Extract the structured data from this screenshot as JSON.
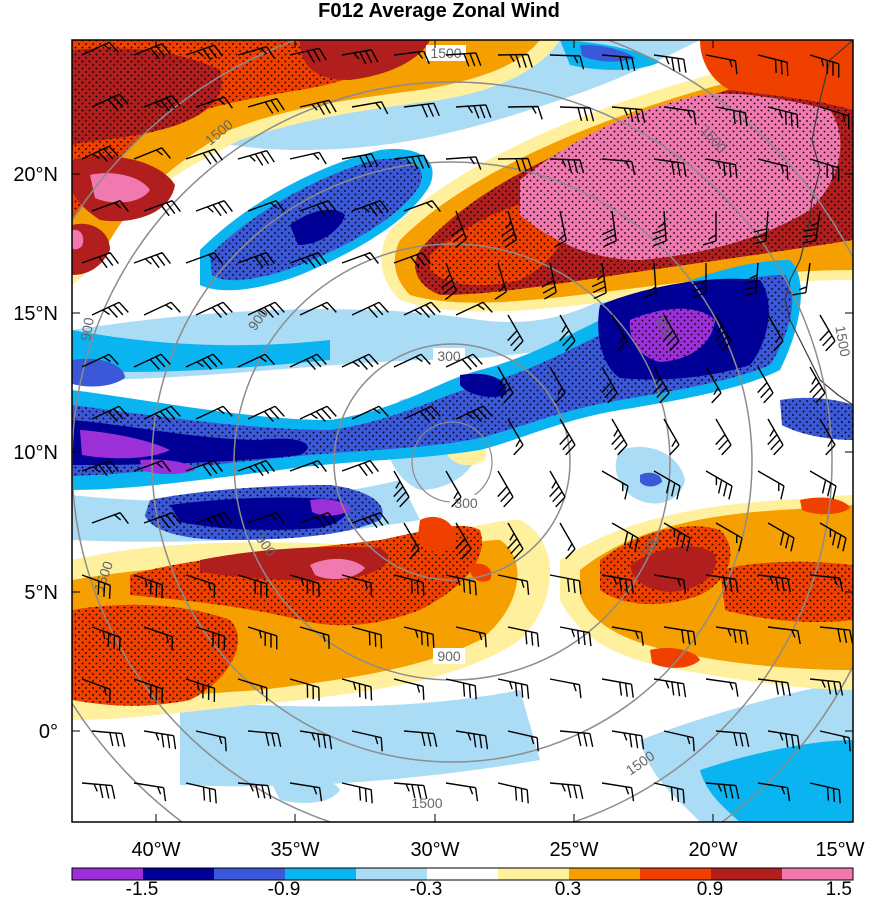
{
  "title": "F012 Average Zonal Wind",
  "lat_labels": [
    "20°N",
    "15°N",
    "10°N",
    "5°N",
    "0°"
  ],
  "lon_labels": [
    "40°W",
    "35°W",
    "30°W",
    "25°W",
    "20°W",
    "15°W"
  ],
  "colorbar": {
    "colors": [
      "#9b30d8",
      "#000096",
      "#3a58d8",
      "#0ab4f0",
      "#aadcf6",
      "#ffffff",
      "#fff09e",
      "#f5a000",
      "#f04000",
      "#b01e1e",
      "#f07ab0"
    ],
    "labels": [
      "-1.5",
      "-0.9",
      "-0.3",
      "0.3",
      "0.9",
      "1.5"
    ]
  },
  "range_rings": [
    {
      "label": "300"
    },
    {
      "label": "900"
    },
    {
      "label": "1500"
    }
  ],
  "colors": {
    "ring": "#8c8c8c",
    "barb": "#000000",
    "coast": "#3a3a3a"
  }
}
